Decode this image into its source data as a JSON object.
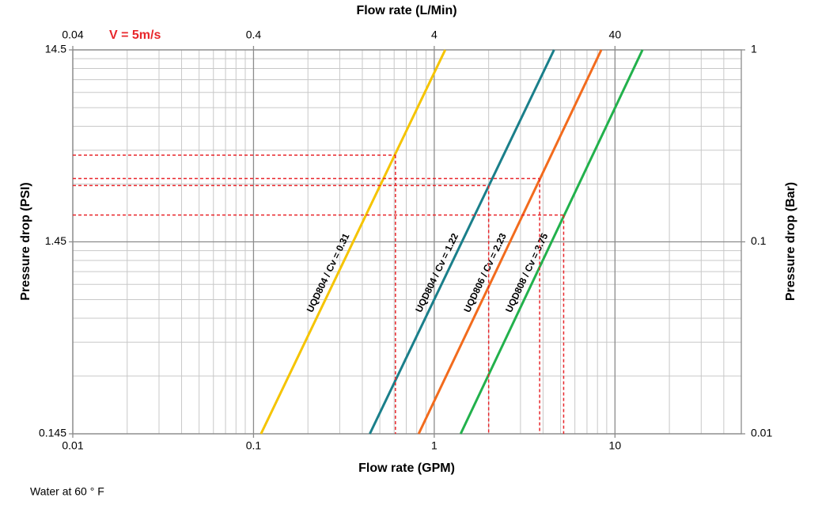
{
  "chart_data": {
    "type": "line",
    "xlabel": "Flow rate (GPM)",
    "x2label": "Flow rate (L/Min)",
    "ylabel": "Pressure drop (PSI)",
    "y2label": "Pressure drop (Bar)",
    "annotations": [
      "V = 5m/s",
      "Water at 60 ° F"
    ],
    "xscale": "log",
    "yscale": "log",
    "xlim": [
      0.01,
      50
    ],
    "xticks": [
      0.01,
      0.1,
      1,
      10
    ],
    "xminorticks": [
      0.02,
      0.03,
      0.04,
      0.05,
      0.06,
      0.07,
      0.08,
      0.09,
      0.2,
      0.3,
      0.4,
      0.5,
      0.6,
      0.7,
      0.8,
      0.9,
      2,
      3,
      4,
      5,
      6,
      7,
      8,
      9,
      20,
      30,
      40,
      50
    ],
    "x2lim": [
      0.04,
      200
    ],
    "x2ticks": [
      0.04,
      0.4,
      4,
      40
    ],
    "ylim": [
      0.145,
      14.5
    ],
    "yticks": [
      0.145,
      1.45,
      14.5
    ],
    "yminorticks": [
      0.29,
      0.435,
      0.58,
      0.725,
      0.87,
      1.015,
      1.16,
      1.305,
      2.9,
      4.35,
      5.8,
      7.25,
      8.7,
      10.15,
      11.6,
      13.05
    ],
    "y2lim": [
      0.01,
      1
    ],
    "y2ticks": [
      0.01,
      0.1,
      1
    ],
    "grid": true,
    "series": [
      {
        "name": "UQD804 / Cv = 0.31",
        "color": "#f5c400",
        "x": [
          0.11,
          1.15
        ],
        "y": [
          0.145,
          14.5
        ]
      },
      {
        "name": "UQD804 / Cv = 1.22",
        "color": "#1a7f8a",
        "x": [
          0.44,
          4.6
        ],
        "y": [
          0.145,
          14.5
        ]
      },
      {
        "name": "UQD806 / Cv = 2.23",
        "color": "#f26b1d",
        "x": [
          0.82,
          8.4
        ],
        "y": [
          0.145,
          14.5
        ]
      },
      {
        "name": "UQD808 / Cv = 3.75",
        "color": "#22b14c",
        "x": [
          1.4,
          14.2
        ],
        "y": [
          0.145,
          14.5
        ]
      }
    ],
    "reference_points": {
      "color": "#e8262b",
      "x": [
        0.61,
        2.0,
        3.83,
        5.2
      ],
      "y": [
        4.1,
        2.85,
        3.1,
        2.0
      ]
    }
  }
}
